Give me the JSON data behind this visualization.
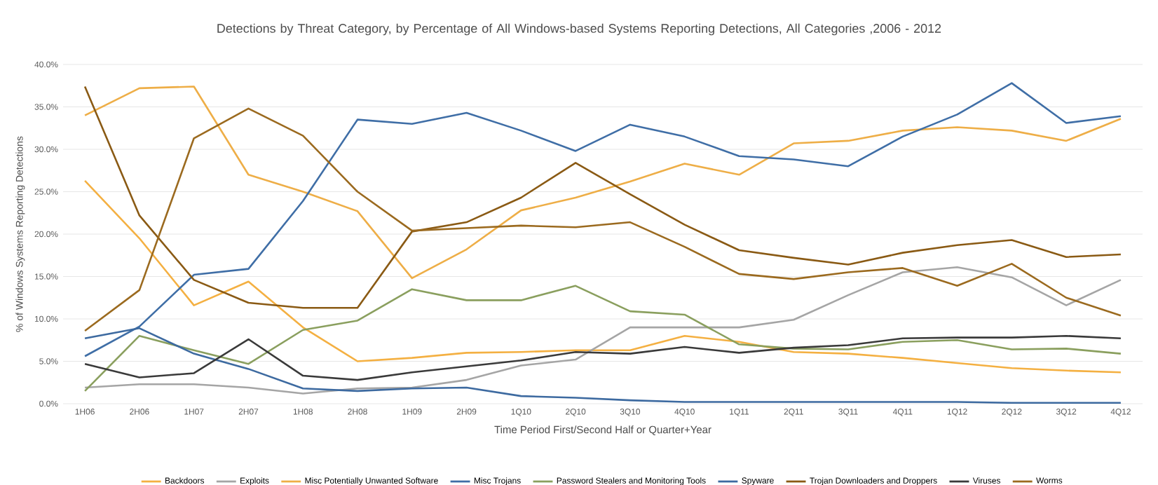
{
  "chart_data": {
    "type": "line",
    "title": "Detections by Threat Category, by Percentage of All Windows-based Systems Reporting Detections, All Categories ,2006 - 2012",
    "xlabel": "Time Period First/Second Half or Quarter+Year",
    "ylabel": "% of Windows Systems Reporting Detections",
    "categories": [
      "1H06",
      "2H06",
      "1H07",
      "2H07",
      "1H08",
      "2H08",
      "1H09",
      "2H09",
      "1Q10",
      "2Q10",
      "3Q10",
      "4Q10",
      "1Q11",
      "2Q11",
      "3Q11",
      "4Q11",
      "1Q12",
      "2Q12",
      "3Q12",
      "4Q12"
    ],
    "ylim": [
      0,
      40
    ],
    "yticks": [
      {
        "value": 0,
        "label": "0.0%"
      },
      {
        "value": 5,
        "label": "5.0%"
      },
      {
        "value": 10,
        "label": "10.0%"
      },
      {
        "value": 15,
        "label": "15.0%"
      },
      {
        "value": 20,
        "label": "20.0%"
      },
      {
        "value": 25,
        "label": "25.0%"
      },
      {
        "value": 30,
        "label": "30.0%"
      },
      {
        "value": 35,
        "label": "35.0%"
      },
      {
        "value": 40,
        "label": "40.0%"
      }
    ],
    "grid": "y",
    "legend": "bottom",
    "marker": "none",
    "line_style": "solid",
    "series": [
      {
        "name": "Backdoors",
        "color": "#f4b042",
        "values": [
          26.3,
          19.5,
          11.6,
          14.4,
          9.0,
          5.0,
          5.4,
          6.0,
          6.1,
          6.3,
          6.3,
          8.0,
          7.3,
          6.1,
          5.9,
          5.4,
          4.8,
          4.2,
          3.9,
          3.7
        ]
      },
      {
        "name": "Exploits",
        "color": "#a5a5a5",
        "values": [
          1.9,
          2.3,
          2.3,
          1.9,
          1.2,
          1.8,
          1.9,
          2.8,
          4.5,
          5.2,
          9.0,
          9.0,
          9.0,
          9.9,
          12.8,
          15.5,
          16.1,
          14.9,
          11.6,
          14.6
        ]
      },
      {
        "name": "Misc Potentially Unwanted Software",
        "color": "#eeae47",
        "values": [
          34.0,
          37.2,
          37.4,
          27.0,
          25.0,
          22.7,
          14.8,
          18.2,
          22.8,
          24.3,
          26.2,
          28.3,
          27.0,
          30.7,
          31.0,
          32.2,
          32.6,
          32.2,
          31.0,
          33.6
        ]
      },
      {
        "name": "Misc Trojans",
        "color": "#3f6ea6",
        "values": [
          5.6,
          9.1,
          15.2,
          15.9,
          23.9,
          33.5,
          33.0,
          34.3,
          32.2,
          29.8,
          32.9,
          31.5,
          29.2,
          28.8,
          28.0,
          31.5,
          34.1,
          37.8,
          33.1,
          33.9
        ]
      },
      {
        "name": "Password Stealers and Monitoring Tools",
        "color": "#8a9f5e",
        "values": [
          1.5,
          8.0,
          6.3,
          4.7,
          8.7,
          9.8,
          13.5,
          12.2,
          12.2,
          13.9,
          10.9,
          10.5,
          7.0,
          6.5,
          6.4,
          7.3,
          7.5,
          6.4,
          6.5,
          5.9
        ]
      },
      {
        "name": "Spyware",
        "color": "#3d6aa0",
        "values": [
          7.7,
          8.9,
          5.9,
          4.1,
          1.8,
          1.5,
          1.8,
          1.9,
          0.9,
          0.7,
          0.4,
          0.2,
          0.2,
          0.2,
          0.2,
          0.2,
          0.2,
          0.1,
          0.1,
          0.1
        ]
      },
      {
        "name": "Trojan Downloaders and Droppers",
        "color": "#8a5a14",
        "values": [
          37.4,
          22.2,
          14.6,
          11.9,
          11.3,
          11.3,
          20.3,
          21.4,
          24.3,
          28.4,
          24.7,
          21.1,
          18.1,
          17.2,
          16.4,
          17.8,
          18.7,
          19.3,
          17.3,
          17.6
        ]
      },
      {
        "name": "Viruses",
        "color": "#3a3a3a",
        "values": [
          4.7,
          3.1,
          3.6,
          7.6,
          3.3,
          2.8,
          3.7,
          4.4,
          5.1,
          6.1,
          5.9,
          6.7,
          6.0,
          6.6,
          6.9,
          7.7,
          7.8,
          7.8,
          8.0,
          7.7
        ]
      },
      {
        "name": "Worms",
        "color": "#9b6a1f",
        "values": [
          8.6,
          13.4,
          31.3,
          34.8,
          31.6,
          25.0,
          20.4,
          20.7,
          21.0,
          20.8,
          21.4,
          18.5,
          15.3,
          14.7,
          15.5,
          16.0,
          13.9,
          16.5,
          12.5,
          10.4
        ]
      }
    ]
  }
}
